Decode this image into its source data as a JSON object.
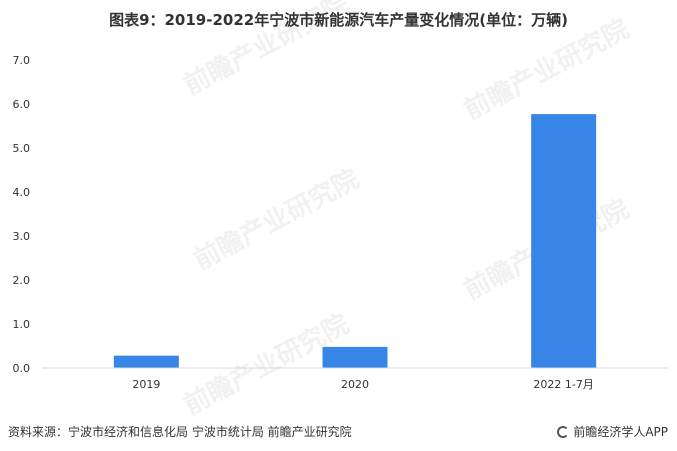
{
  "chart_data": {
    "type": "bar",
    "title": "图表9：2019-2022年宁波市新能源汽车产量变化情况(单位：万辆)",
    "categories": [
      "2019",
      "2020",
      "2022 1-7月"
    ],
    "values": [
      0.28,
      0.48,
      5.77
    ],
    "ylim": [
      0,
      7
    ],
    "yticks": [
      "0.0",
      "1.0",
      "2.0",
      "3.0",
      "4.0",
      "5.0",
      "6.0",
      "7.0"
    ],
    "xlabel": "",
    "ylabel": "",
    "grid": false,
    "legend": "none",
    "bar_color": "#3785e6"
  },
  "footer": {
    "source": "资料来源：宁波市经济和信息化局 宁波市统计局 前瞻产业研究院",
    "brand": "前瞻经济学人APP"
  },
  "watermark": {
    "text": "前瞻产业研究院"
  }
}
